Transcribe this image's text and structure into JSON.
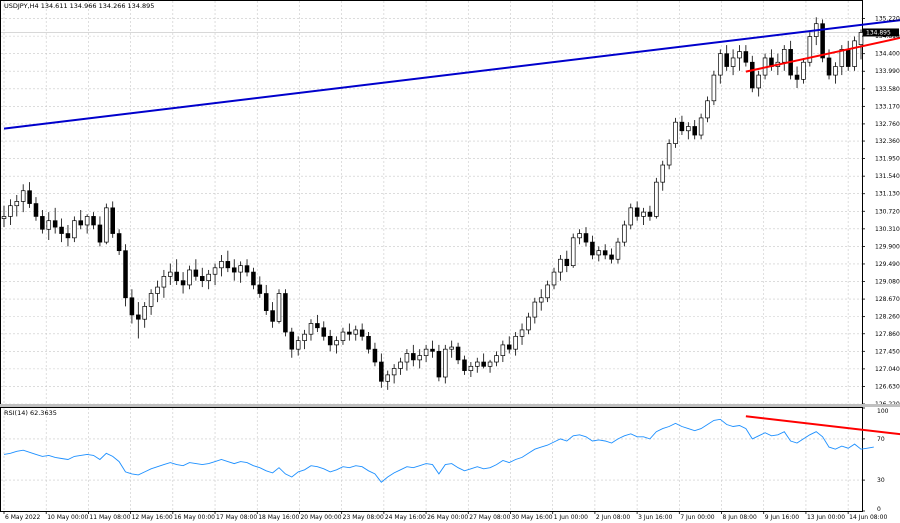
{
  "header": {
    "symbol_line": "USDJPY,H4  134.611 134.966 134.266 134.895",
    "rsi_label": "RSI(14) 62.3635"
  },
  "colors": {
    "background": "#ffffff",
    "grid": "#c8c8c8",
    "candle": "#000000",
    "rsi_line": "#1e90ff",
    "trend_blue": "#0000cc",
    "trend_red": "#ff0000",
    "price_tag_bg": "#000000",
    "price_tag_text": "#ffffff"
  },
  "chart_data": [
    {
      "type": "candlestick",
      "title": "USDJPY,H4",
      "ylim": [
        126.22,
        135.63
      ],
      "y_ticks": [
        "135.220",
        "134.810",
        "134.400",
        "133.990",
        "133.580",
        "133.170",
        "132.760",
        "132.360",
        "131.950",
        "131.540",
        "131.130",
        "130.720",
        "130.310",
        "129.900",
        "129.490",
        "129.080",
        "128.670",
        "128.260",
        "127.860",
        "127.450",
        "127.040",
        "126.630",
        "126.220"
      ],
      "current_price": "134.895",
      "grid": true,
      "ohlc": [
        [
          130.55,
          130.85,
          130.35,
          130.6
        ],
        [
          130.6,
          131.0,
          130.4,
          130.85
        ],
        [
          130.85,
          131.1,
          130.6,
          130.95
        ],
        [
          130.95,
          131.35,
          130.7,
          131.2
        ],
        [
          131.2,
          131.4,
          130.8,
          130.9
        ],
        [
          130.9,
          131.05,
          130.5,
          130.6
        ],
        [
          130.6,
          130.75,
          130.2,
          130.3
        ],
        [
          130.3,
          130.7,
          130.05,
          130.5
        ],
        [
          130.5,
          130.8,
          130.2,
          130.35
        ],
        [
          130.35,
          130.55,
          130.0,
          130.2
        ],
        [
          130.2,
          130.4,
          129.9,
          130.1
        ],
        [
          130.1,
          130.6,
          130.0,
          130.5
        ],
        [
          130.5,
          130.75,
          130.3,
          130.4
        ],
        [
          130.4,
          130.65,
          130.2,
          130.6
        ],
        [
          130.6,
          130.7,
          130.3,
          130.4
        ],
        [
          130.4,
          130.6,
          129.9,
          130.0
        ],
        [
          130.0,
          130.9,
          129.95,
          130.8
        ],
        [
          130.8,
          130.95,
          130.1,
          130.2
        ],
        [
          130.2,
          130.3,
          129.7,
          129.8
        ],
        [
          129.8,
          129.95,
          128.5,
          128.7
        ],
        [
          128.7,
          128.9,
          128.1,
          128.3
        ],
        [
          128.3,
          128.6,
          127.75,
          128.2
        ],
        [
          128.2,
          128.6,
          128.0,
          128.5
        ],
        [
          128.5,
          128.9,
          128.3,
          128.8
        ],
        [
          128.8,
          129.1,
          128.6,
          128.95
        ],
        [
          128.95,
          129.35,
          128.7,
          129.2
        ],
        [
          129.2,
          129.5,
          129.0,
          129.3
        ],
        [
          129.3,
          129.6,
          129.0,
          129.1
        ],
        [
          129.1,
          129.3,
          128.8,
          129.0
        ],
        [
          129.0,
          129.45,
          128.9,
          129.35
        ],
        [
          129.35,
          129.6,
          129.1,
          129.2
        ],
        [
          129.2,
          129.4,
          128.95,
          129.1
        ],
        [
          129.1,
          129.35,
          128.9,
          129.25
        ],
        [
          129.25,
          129.5,
          129.0,
          129.4
        ],
        [
          129.4,
          129.7,
          129.2,
          129.55
        ],
        [
          129.55,
          129.8,
          129.3,
          129.4
        ],
        [
          129.4,
          129.6,
          129.1,
          129.3
        ],
        [
          129.3,
          129.55,
          129.05,
          129.45
        ],
        [
          129.45,
          129.6,
          129.2,
          129.3
        ],
        [
          129.3,
          129.4,
          128.9,
          129.0
        ],
        [
          129.0,
          129.2,
          128.7,
          128.8
        ],
        [
          128.8,
          129.0,
          128.3,
          128.4
        ],
        [
          128.4,
          128.6,
          128.0,
          128.15
        ],
        [
          128.15,
          128.9,
          128.1,
          128.8
        ],
        [
          128.8,
          128.9,
          127.8,
          127.9
        ],
        [
          127.9,
          128.0,
          127.3,
          127.5
        ],
        [
          127.5,
          127.8,
          127.35,
          127.7
        ],
        [
          127.7,
          127.95,
          127.5,
          127.85
        ],
        [
          127.85,
          128.2,
          127.7,
          128.1
        ],
        [
          128.1,
          128.3,
          127.9,
          128.0
        ],
        [
          128.0,
          128.15,
          127.7,
          127.8
        ],
        [
          127.8,
          127.95,
          127.45,
          127.6
        ],
        [
          127.6,
          127.8,
          127.4,
          127.7
        ],
        [
          127.7,
          128.0,
          127.6,
          127.9
        ],
        [
          127.9,
          128.1,
          127.7,
          127.85
        ],
        [
          127.85,
          128.05,
          127.7,
          127.95
        ],
        [
          127.95,
          128.1,
          127.7,
          127.8
        ],
        [
          127.8,
          127.9,
          127.4,
          127.5
        ],
        [
          127.5,
          127.65,
          127.1,
          127.2
        ],
        [
          127.2,
          127.4,
          126.6,
          126.75
        ],
        [
          126.75,
          127.0,
          126.55,
          126.9
        ],
        [
          126.9,
          127.15,
          126.7,
          127.05
        ],
        [
          127.05,
          127.3,
          126.9,
          127.2
        ],
        [
          127.2,
          127.5,
          127.0,
          127.4
        ],
        [
          127.4,
          127.6,
          127.1,
          127.25
        ],
        [
          127.25,
          127.5,
          127.05,
          127.35
        ],
        [
          127.35,
          127.6,
          127.2,
          127.5
        ],
        [
          127.5,
          127.7,
          127.3,
          127.45
        ],
        [
          127.45,
          127.6,
          126.75,
          126.85
        ],
        [
          126.85,
          127.6,
          126.7,
          127.5
        ],
        [
          127.5,
          127.7,
          127.3,
          127.55
        ],
        [
          127.55,
          127.65,
          127.15,
          127.25
        ],
        [
          127.25,
          127.35,
          126.9,
          127.0
        ],
        [
          127.0,
          127.2,
          126.85,
          127.1
        ],
        [
          127.1,
          127.3,
          126.95,
          127.2
        ],
        [
          127.2,
          127.4,
          127.05,
          127.1
        ],
        [
          127.1,
          127.25,
          126.95,
          127.2
        ],
        [
          127.2,
          127.45,
          127.1,
          127.35
        ],
        [
          127.35,
          127.7,
          127.2,
          127.6
        ],
        [
          127.6,
          127.8,
          127.4,
          127.5
        ],
        [
          127.5,
          127.9,
          127.35,
          127.8
        ],
        [
          127.8,
          128.1,
          127.6,
          127.95
        ],
        [
          127.95,
          128.35,
          127.85,
          128.25
        ],
        [
          128.25,
          128.7,
          128.1,
          128.6
        ],
        [
          128.6,
          128.9,
          128.4,
          128.7
        ],
        [
          128.7,
          129.1,
          128.6,
          129.0
        ],
        [
          129.0,
          129.4,
          128.9,
          129.3
        ],
        [
          129.3,
          129.7,
          129.1,
          129.6
        ],
        [
          129.6,
          129.8,
          129.3,
          129.45
        ],
        [
          129.45,
          130.2,
          129.4,
          130.1
        ],
        [
          130.1,
          130.3,
          129.95,
          130.2
        ],
        [
          130.2,
          130.35,
          129.9,
          130.0
        ],
        [
          130.0,
          130.15,
          129.6,
          129.7
        ],
        [
          129.7,
          129.9,
          129.55,
          129.8
        ],
        [
          129.8,
          129.95,
          129.6,
          129.7
        ],
        [
          129.7,
          129.85,
          129.5,
          129.6
        ],
        [
          129.6,
          130.1,
          129.5,
          130.0
        ],
        [
          130.0,
          130.5,
          129.9,
          130.4
        ],
        [
          130.4,
          130.9,
          130.3,
          130.8
        ],
        [
          130.8,
          130.95,
          130.5,
          130.6
        ],
        [
          130.6,
          130.8,
          130.4,
          130.7
        ],
        [
          130.7,
          130.85,
          130.5,
          130.6
        ],
        [
          130.6,
          131.5,
          130.55,
          131.4
        ],
        [
          131.4,
          131.9,
          131.2,
          131.8
        ],
        [
          131.8,
          132.4,
          131.7,
          132.3
        ],
        [
          132.3,
          132.9,
          132.2,
          132.8
        ],
        [
          132.8,
          132.95,
          132.5,
          132.6
        ],
        [
          132.6,
          132.8,
          132.4,
          132.7
        ],
        [
          132.7,
          132.85,
          132.4,
          132.5
        ],
        [
          132.5,
          133.0,
          132.4,
          132.9
        ],
        [
          132.9,
          133.4,
          132.8,
          133.3
        ],
        [
          133.3,
          134.0,
          133.2,
          133.9
        ],
        [
          133.9,
          134.5,
          133.7,
          134.4
        ],
        [
          134.4,
          134.6,
          134.0,
          134.1
        ],
        [
          134.1,
          134.5,
          133.9,
          134.3
        ],
        [
          134.3,
          134.6,
          134.0,
          134.45
        ],
        [
          134.45,
          134.6,
          134.1,
          134.2
        ],
        [
          134.2,
          134.35,
          133.5,
          133.6
        ],
        [
          133.6,
          134.0,
          133.4,
          133.9
        ],
        [
          133.9,
          134.4,
          133.8,
          134.3
        ],
        [
          134.3,
          134.5,
          134.0,
          134.1
        ],
        [
          134.1,
          134.4,
          133.9,
          134.2
        ],
        [
          134.2,
          134.6,
          134.0,
          134.5
        ],
        [
          134.5,
          134.7,
          133.8,
          133.9
        ],
        [
          133.9,
          134.1,
          133.6,
          133.8
        ],
        [
          133.8,
          134.3,
          133.7,
          134.2
        ],
        [
          134.2,
          134.9,
          134.1,
          134.8
        ],
        [
          134.8,
          135.25,
          134.6,
          135.1
        ],
        [
          135.1,
          135.2,
          134.2,
          134.3
        ],
        [
          134.3,
          134.5,
          133.8,
          133.9
        ],
        [
          133.9,
          134.2,
          133.7,
          134.1
        ],
        [
          134.1,
          134.6,
          133.9,
          134.5
        ],
        [
          134.5,
          134.7,
          134.0,
          134.1
        ],
        [
          134.1,
          134.8,
          134.0,
          134.7
        ],
        [
          134.611,
          134.966,
          134.266,
          134.895
        ]
      ],
      "x_tick_labels": [
        "6 May 2022",
        "10 May 00:00",
        "11 May 08:00",
        "12 May 16:00",
        "16 May 00:00",
        "17 May 08:00",
        "18 May 16:00",
        "20 May 00:00",
        "23 May 08:00",
        "24 May 16:00",
        "26 May 00:00",
        "27 May 08:00",
        "30 May 16:00",
        "1 Jun 00:00",
        "2 Jun 08:00",
        "3 Jun 16:00",
        "7 Jun 00:00",
        "8 Jun 08:00",
        "9 Jun 16:00",
        "13 Jun 00:00",
        "14 Jun 08:00"
      ],
      "trendlines": [
        {
          "color": "blue",
          "from": [
            0,
            132.65
          ],
          "to": [
            166,
            135.65
          ]
        },
        {
          "color": "red",
          "from": [
            116,
            133.98
          ],
          "to": [
            164,
            135.55
          ]
        }
      ]
    },
    {
      "type": "line",
      "title": "RSI(14) 62.3635",
      "ylim": [
        0,
        100
      ],
      "y_ticks": [
        "100",
        "70",
        "30",
        "0"
      ],
      "values": [
        55,
        56,
        58,
        59,
        57,
        55,
        53,
        54,
        52,
        51,
        50,
        53,
        54,
        55,
        54,
        50,
        56,
        53,
        48,
        38,
        36,
        35,
        38,
        41,
        43,
        45,
        47,
        45,
        44,
        47,
        46,
        45,
        46,
        48,
        50,
        48,
        46,
        48,
        47,
        44,
        42,
        39,
        37,
        42,
        36,
        33,
        38,
        40,
        44,
        43,
        41,
        38,
        40,
        43,
        42,
        44,
        43,
        39,
        36,
        28,
        33,
        37,
        40,
        43,
        42,
        44,
        46,
        45,
        36,
        45,
        46,
        42,
        39,
        41,
        43,
        41,
        42,
        45,
        49,
        47,
        50,
        52,
        56,
        60,
        62,
        64,
        67,
        70,
        68,
        73,
        74,
        72,
        68,
        69,
        68,
        66,
        70,
        73,
        75,
        72,
        72,
        70,
        77,
        80,
        82,
        85,
        82,
        80,
        78,
        80,
        84,
        88,
        89,
        84,
        82,
        83,
        80,
        70,
        73,
        76,
        73,
        74,
        77,
        68,
        66,
        70,
        74,
        77,
        72,
        62,
        60,
        63,
        61,
        65,
        60,
        61,
        62
      ],
      "trendlines": [
        {
          "color": "red",
          "from": [
            116,
            92
          ],
          "to": [
            166,
            56
          ]
        }
      ]
    }
  ]
}
